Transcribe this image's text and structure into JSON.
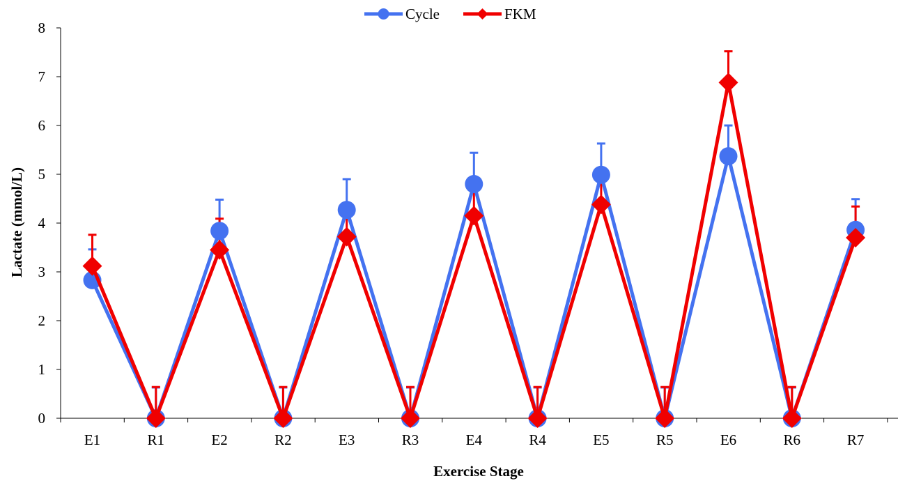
{
  "chart_data": {
    "type": "line",
    "title": "",
    "xlabel": "Exercise Stage",
    "ylabel": "Lactate (mmol/L)",
    "categories": [
      "E1",
      "R1",
      "E2",
      "R2",
      "E3",
      "R3",
      "E4",
      "R4",
      "E5",
      "R5",
      "E6",
      "R6",
      "R7"
    ],
    "ylim": [
      0,
      8
    ],
    "yticks": [
      "0",
      "1",
      "2",
      "3",
      "4",
      "5",
      "6",
      "7",
      "8"
    ],
    "grid": false,
    "legend_position": "top-center",
    "series": [
      {
        "name": "Cycle",
        "color": "#4472F0",
        "marker": "circle",
        "values": [
          2.83,
          0,
          3.84,
          0,
          4.27,
          0,
          4.8,
          0,
          4.99,
          0,
          5.37,
          0,
          3.86
        ],
        "error": [
          0.63,
          0.63,
          0.64,
          0.63,
          0.63,
          0.63,
          0.64,
          0.63,
          0.64,
          0.63,
          0.63,
          0.63,
          0.63
        ]
      },
      {
        "name": "FKM",
        "color": "#F00000",
        "marker": "diamond",
        "values": [
          3.12,
          0,
          3.45,
          0,
          3.72,
          0,
          4.15,
          0,
          4.38,
          0,
          6.88,
          0,
          3.7
        ],
        "error": [
          0.64,
          0.64,
          0.64,
          0.64,
          0.64,
          0.64,
          0.64,
          0.64,
          0.64,
          0.64,
          0.64,
          0.64,
          0.64
        ]
      }
    ]
  }
}
